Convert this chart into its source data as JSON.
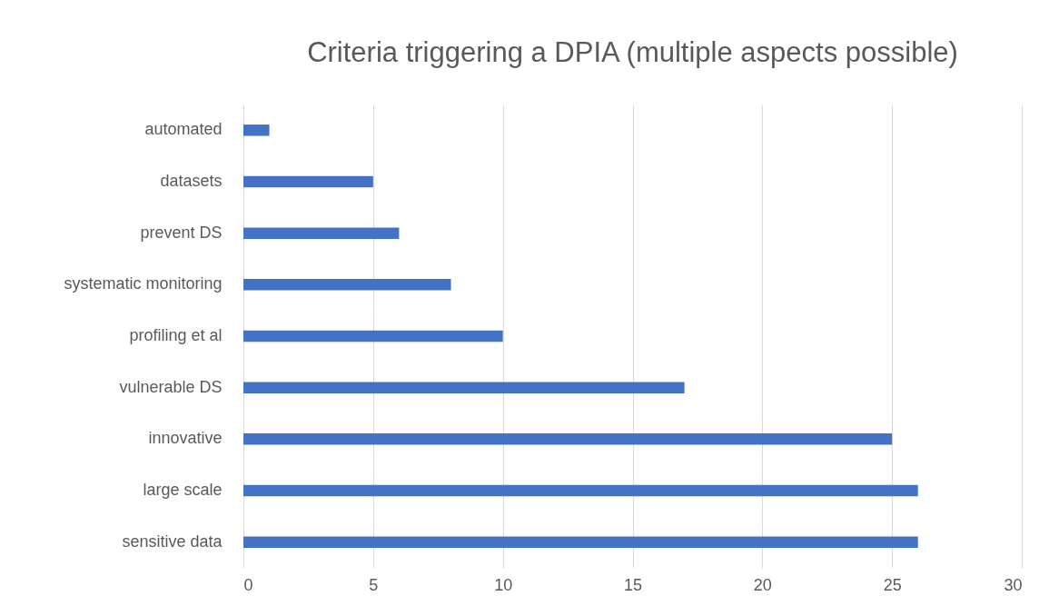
{
  "chart_data": {
    "type": "bar",
    "orientation": "horizontal",
    "title": "Criteria triggering a DPIA (multiple aspects possible)",
    "categories": [
      "automated",
      "datasets",
      "prevent DS",
      "systematic monitoring",
      "profiling et al",
      "vulnerable DS",
      "innovative",
      "large scale",
      "sensitive data"
    ],
    "values": [
      1,
      5,
      6,
      8,
      10,
      17,
      25,
      26,
      26
    ],
    "color": "#4472c4",
    "xlim": [
      0,
      30
    ],
    "xticks": [
      0,
      5,
      10,
      15,
      20,
      25,
      30
    ],
    "grid": "x"
  }
}
